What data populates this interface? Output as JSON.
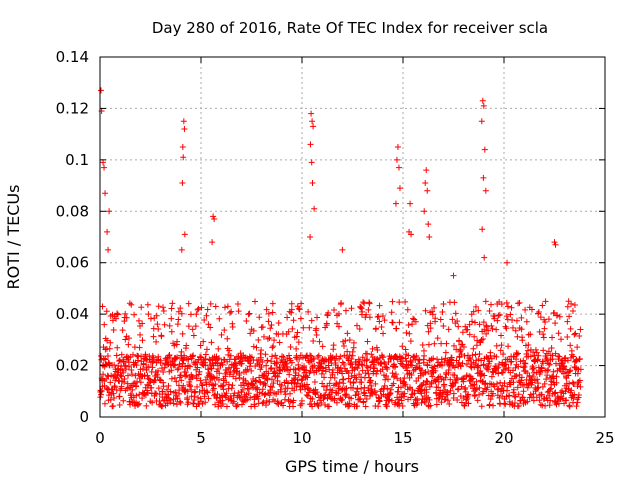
{
  "chart_data": {
    "type": "scatter",
    "title": "Day 280 of 2016, Rate Of TEC Index for receiver scla",
    "xlabel": "GPS time / hours",
    "ylabel": "ROTI / TECUs",
    "xlim": [
      0,
      25
    ],
    "ylim": [
      0,
      0.14
    ],
    "x_ticks": [
      0,
      5,
      10,
      15,
      20,
      25
    ],
    "x_tick_labels": [
      "0",
      "5",
      "10",
      "15",
      "20",
      "25"
    ],
    "y_ticks": [
      0,
      0.02,
      0.04,
      0.06,
      0.08,
      0.1,
      0.12,
      0.14
    ],
    "y_tick_labels": [
      "0",
      "0.02",
      "0.04",
      "0.06",
      "0.08",
      "0.1",
      "0.12",
      "0.14"
    ],
    "grid": true,
    "marker": "+",
    "marker_color": "#ff0000",
    "series": [
      {
        "name": "ROTI",
        "baseline_range": [
          0.004,
          0.045
        ],
        "spikes": [
          {
            "x": 0.05,
            "y": 0.127
          },
          {
            "x": 0.08,
            "y": 0.119
          },
          {
            "x": 0.15,
            "y": 0.099
          },
          {
            "x": 0.2,
            "y": 0.097
          },
          {
            "x": 0.25,
            "y": 0.087
          },
          {
            "x": 0.45,
            "y": 0.08
          },
          {
            "x": 0.35,
            "y": 0.072
          },
          {
            "x": 0.4,
            "y": 0.065
          },
          {
            "x": 4.15,
            "y": 0.115
          },
          {
            "x": 4.18,
            "y": 0.112
          },
          {
            "x": 4.1,
            "y": 0.105
          },
          {
            "x": 4.12,
            "y": 0.101
          },
          {
            "x": 4.08,
            "y": 0.091
          },
          {
            "x": 4.2,
            "y": 0.071
          },
          {
            "x": 4.05,
            "y": 0.065
          },
          {
            "x": 5.6,
            "y": 0.078
          },
          {
            "x": 5.65,
            "y": 0.077
          },
          {
            "x": 5.55,
            "y": 0.068
          },
          {
            "x": 10.45,
            "y": 0.118
          },
          {
            "x": 10.5,
            "y": 0.115
          },
          {
            "x": 10.55,
            "y": 0.113
          },
          {
            "x": 10.42,
            "y": 0.106
          },
          {
            "x": 10.48,
            "y": 0.099
          },
          {
            "x": 10.52,
            "y": 0.091
          },
          {
            "x": 10.6,
            "y": 0.081
          },
          {
            "x": 10.4,
            "y": 0.07
          },
          {
            "x": 12.0,
            "y": 0.065
          },
          {
            "x": 14.75,
            "y": 0.105
          },
          {
            "x": 14.7,
            "y": 0.1
          },
          {
            "x": 14.8,
            "y": 0.097
          },
          {
            "x": 14.85,
            "y": 0.089
          },
          {
            "x": 14.65,
            "y": 0.083
          },
          {
            "x": 15.35,
            "y": 0.083
          },
          {
            "x": 15.3,
            "y": 0.072
          },
          {
            "x": 15.4,
            "y": 0.071
          },
          {
            "x": 16.15,
            "y": 0.096
          },
          {
            "x": 16.1,
            "y": 0.091
          },
          {
            "x": 16.2,
            "y": 0.088
          },
          {
            "x": 16.05,
            "y": 0.08
          },
          {
            "x": 16.25,
            "y": 0.075
          },
          {
            "x": 16.3,
            "y": 0.07
          },
          {
            "x": 18.95,
            "y": 0.123
          },
          {
            "x": 19.0,
            "y": 0.121
          },
          {
            "x": 18.9,
            "y": 0.115
          },
          {
            "x": 19.05,
            "y": 0.104
          },
          {
            "x": 18.98,
            "y": 0.093
          },
          {
            "x": 19.1,
            "y": 0.088
          },
          {
            "x": 18.92,
            "y": 0.073
          },
          {
            "x": 19.02,
            "y": 0.062
          },
          {
            "x": 22.5,
            "y": 0.068
          },
          {
            "x": 22.55,
            "y": 0.067
          },
          {
            "x": 20.15,
            "y": 0.06
          },
          {
            "x": 17.5,
            "y": 0.055
          },
          {
            "x": 23.2,
            "y": 0.045
          }
        ]
      }
    ]
  }
}
